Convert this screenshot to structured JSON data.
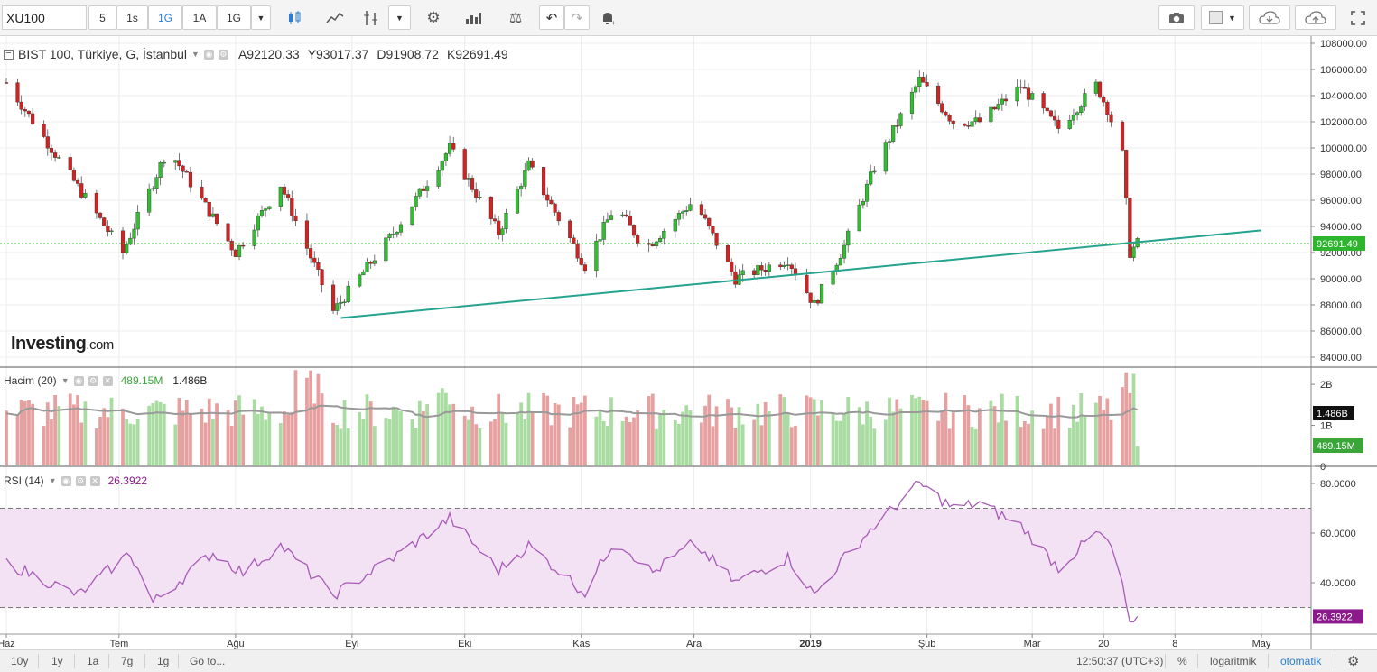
{
  "toolbar": {
    "symbol": "XU100",
    "intervals": [
      "5",
      "1s",
      "1G",
      "1A",
      "1G"
    ],
    "active_interval_index": 2,
    "accent_color": "#2a7fd4",
    "icons": [
      "candles-icon",
      "line-chart-icon",
      "indicators-icon",
      "settings-icon",
      "bar-stats-icon",
      "scale-icon",
      "undo-icon",
      "redo-icon",
      "alert-icon",
      "camera-icon",
      "color-box-icon",
      "cloud-download-icon",
      "cloud-upload-icon",
      "fullscreen-icon"
    ]
  },
  "legend": {
    "title": "BIST 100, Türkiye, G, İstanbul",
    "open": "A92120.33",
    "high": "Y93017.37",
    "low": "D91908.72",
    "close": "K92691.49"
  },
  "watermark": {
    "brand": "Investing",
    "suffix": ".com"
  },
  "volume_legend": {
    "label": "Hacim (20)",
    "value": "489.15M",
    "ma_value": "1.486B"
  },
  "rsi_legend": {
    "label": "RSI (14)",
    "value": "26.3922"
  },
  "x_labels": [
    "Haz",
    "Tem",
    "Ağu",
    "Eyl",
    "Eki",
    "Kas",
    "Ara",
    "2019",
    "Şub",
    "Mar",
    "20",
    "8",
    "May"
  ],
  "bottom_bar": {
    "ranges": [
      "10y",
      "1y",
      "1a",
      "7g",
      "1g"
    ],
    "goto": "Go to...",
    "time": "12:50:37 (UTC+3)",
    "percent": "%",
    "log": "logaritmik",
    "auto": "otomatik"
  },
  "chart_data": [
    {
      "type": "candlestick",
      "name": "BIST 100",
      "x_range": [
        "2018-06",
        "2019-05"
      ],
      "ylim": [
        84000,
        108000
      ],
      "y_ticks": [
        "108000.00",
        "106000.00",
        "104000.00",
        "102000.00",
        "100000.00",
        "98000.00",
        "96000.00",
        "94000.00",
        "92000.00",
        "90000.00",
        "88000.00",
        "86000.00",
        "84000.00"
      ],
      "last_price": "92691.49",
      "colors": {
        "up": "#2fbf2f",
        "down": "#d62121",
        "trendline": "#26a38f",
        "price_line": "#2db52d"
      },
      "key_points": [
        {
          "x": "2018-06-01",
          "y": 105000
        },
        {
          "x": "2018-07-02",
          "y": 92000
        },
        {
          "x": "2018-07-14",
          "y": 100000
        },
        {
          "x": "2018-08-01",
          "y": 92000
        },
        {
          "x": "2018-08-13",
          "y": 97200
        },
        {
          "x": "2018-08-27",
          "y": 87500
        },
        {
          "x": "2018-09-12",
          "y": 93500
        },
        {
          "x": "2018-09-27",
          "y": 100000
        },
        {
          "x": "2018-10-10",
          "y": 93500
        },
        {
          "x": "2018-10-18",
          "y": 98700
        },
        {
          "x": "2018-11-02",
          "y": 91000
        },
        {
          "x": "2018-11-10",
          "y": 95600
        },
        {
          "x": "2018-11-18",
          "y": 92300
        },
        {
          "x": "2018-12-01",
          "y": 96000
        },
        {
          "x": "2018-12-12",
          "y": 90000
        },
        {
          "x": "2018-12-26",
          "y": 91500
        },
        {
          "x": "2019-01-02",
          "y": 88000
        },
        {
          "x": "2019-01-10",
          "y": 92500
        },
        {
          "x": "2019-01-18",
          "y": 98500
        },
        {
          "x": "2019-01-30",
          "y": 105200
        },
        {
          "x": "2019-02-08",
          "y": 102000
        },
        {
          "x": "2019-02-15",
          "y": 102000
        },
        {
          "x": "2019-02-26",
          "y": 104700
        },
        {
          "x": "2019-03-08",
          "y": 101500
        },
        {
          "x": "2019-03-18",
          "y": 104800
        },
        {
          "x": "2019-03-21",
          "y": 103000
        },
        {
          "x": "2019-03-25",
          "y": 99500
        },
        {
          "x": "2019-03-27",
          "y": 92000
        },
        {
          "x": "2019-03-29",
          "y": 92700
        }
      ],
      "trendline": {
        "from": {
          "x": "2018-08-29",
          "y": 87000
        },
        "to": {
          "x": "2019-05-01",
          "y": 93700
        }
      }
    },
    {
      "type": "bar",
      "name": "Hacim (20)",
      "ylim": [
        0,
        2200000000
      ],
      "y_ticks": [
        "2B",
        "1B",
        "0"
      ],
      "last_value": "489.15M",
      "ma_last": "1.486B",
      "colors": {
        "up": "#a8dca0",
        "down": "#e6a0a0",
        "ma": "#999999"
      }
    },
    {
      "type": "line",
      "name": "RSI (14)",
      "ylim": [
        15,
        85
      ],
      "y_ticks": [
        "80.0000",
        "60.0000",
        "40.0000"
      ],
      "levels": [
        70,
        30
      ],
      "last_value": "26.3922",
      "colors": {
        "line": "#a85ab8",
        "band": "#f2e2f3",
        "label": "#8b1a8b"
      },
      "key_points": [
        {
          "x": "2018-06-01",
          "y": 48
        },
        {
          "x": "2018-06-20",
          "y": 35
        },
        {
          "x": "2018-07-04",
          "y": 52
        },
        {
          "x": "2018-07-10",
          "y": 32
        },
        {
          "x": "2018-07-26",
          "y": 52
        },
        {
          "x": "2018-08-03",
          "y": 44
        },
        {
          "x": "2018-08-13",
          "y": 55
        },
        {
          "x": "2018-08-27",
          "y": 35
        },
        {
          "x": "2018-09-12",
          "y": 50
        },
        {
          "x": "2018-09-27",
          "y": 66
        },
        {
          "x": "2018-10-10",
          "y": 45
        },
        {
          "x": "2018-10-18",
          "y": 55
        },
        {
          "x": "2018-11-02",
          "y": 36
        },
        {
          "x": "2018-11-10",
          "y": 58
        },
        {
          "x": "2018-11-20",
          "y": 44
        },
        {
          "x": "2018-12-01",
          "y": 56
        },
        {
          "x": "2018-12-12",
          "y": 40
        },
        {
          "x": "2018-12-26",
          "y": 50
        },
        {
          "x": "2019-01-02",
          "y": 35
        },
        {
          "x": "2019-01-10",
          "y": 50
        },
        {
          "x": "2019-01-18",
          "y": 63
        },
        {
          "x": "2019-01-30",
          "y": 80
        },
        {
          "x": "2019-02-08",
          "y": 70
        },
        {
          "x": "2019-02-15",
          "y": 72
        },
        {
          "x": "2019-02-26",
          "y": 63
        },
        {
          "x": "2019-03-08",
          "y": 46
        },
        {
          "x": "2019-03-18",
          "y": 60
        },
        {
          "x": "2019-03-21",
          "y": 57
        },
        {
          "x": "2019-03-25",
          "y": 40
        },
        {
          "x": "2019-03-27",
          "y": 22
        },
        {
          "x": "2019-03-29",
          "y": 26.3922
        }
      ]
    }
  ]
}
